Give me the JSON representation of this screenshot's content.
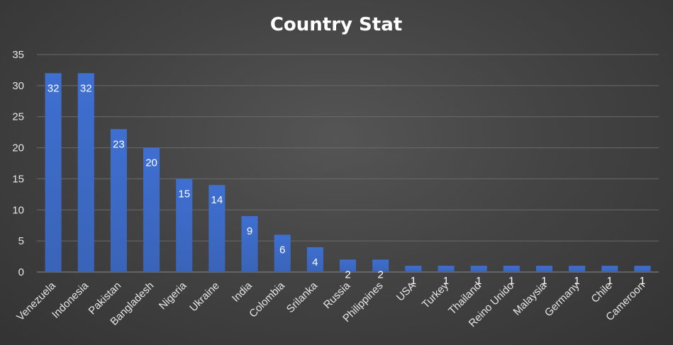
{
  "chart_data": {
    "type": "bar",
    "title": "Country Stat",
    "xlabel": "",
    "ylabel": "",
    "ylim": [
      0,
      35
    ],
    "yticks": [
      0,
      5,
      10,
      15,
      20,
      25,
      30,
      35
    ],
    "grid": true,
    "legend": "none",
    "bar_color": "#4472c4",
    "categories": [
      "Venezuela",
      "Indonesia",
      "Pakistan",
      "Bangladesh",
      "Nigeria",
      "Ukraine",
      "India",
      "Colombia",
      "Srilanka",
      "Russia",
      "Philippines",
      "USA",
      "Turkey",
      "Thailand",
      "Reino Unido",
      "Malaysia",
      "Germany",
      "Chile",
      "Cameroon"
    ],
    "values": [
      32,
      32,
      23,
      20,
      15,
      14,
      9,
      6,
      4,
      2,
      2,
      1,
      1,
      1,
      1,
      1,
      1,
      1,
      1
    ]
  }
}
